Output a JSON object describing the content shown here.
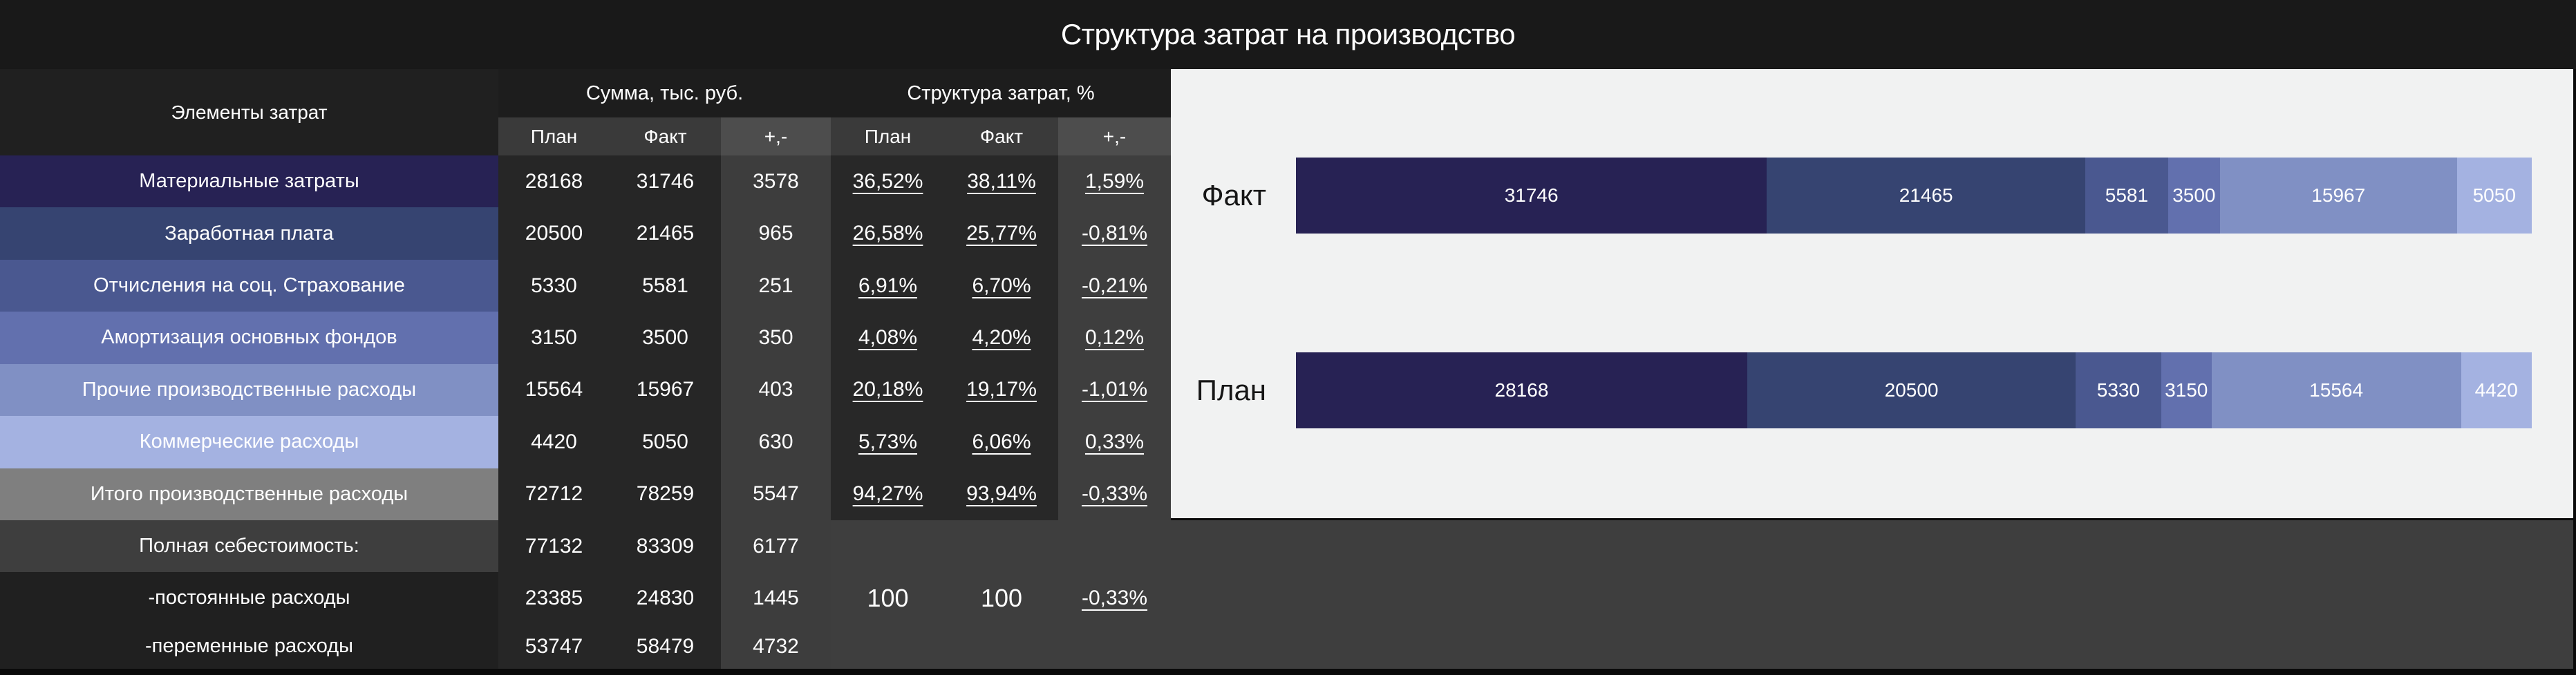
{
  "title": "Структура затрат на производство",
  "colors": {
    "panel_bg": "#f1f2f2",
    "band_bg": "#3e3e3e",
    "palette": [
      "#272254",
      "#364471",
      "#4a5890",
      "#6270ae",
      "#8090c4",
      "#a4b2e1"
    ],
    "total_row_color": "#7f7f7f"
  },
  "table": {
    "elements_header": "Элементы затрат",
    "sum_group_header": "Сумма, тыс. руб.",
    "pct_group_header": "Структура затрат, %",
    "sub_plan": "План",
    "sub_fact": "Факт",
    "sub_delta": "+,-",
    "rows": [
      {
        "label": "Материальные затраты",
        "color": "#272254",
        "plan": "28168",
        "fact": "31746",
        "delta": "3578",
        "plan_pct": "36,52%",
        "fact_pct": "38,11%",
        "delta_pct": "1,59%"
      },
      {
        "label": "Заработная плата",
        "color": "#364471",
        "plan": "20500",
        "fact": "21465",
        "delta": "965",
        "plan_pct": "26,58%",
        "fact_pct": "25,77%",
        "delta_pct": "-0,81%"
      },
      {
        "label": "Отчисления на соц. Страхование",
        "color": "#4a5890",
        "plan": "5330",
        "fact": "5581",
        "delta": "251",
        "plan_pct": "6,91%",
        "fact_pct": "6,70%",
        "delta_pct": "-0,21%"
      },
      {
        "label": "Амортизация основных фондов",
        "color": "#6270ae",
        "plan": "3150",
        "fact": "3500",
        "delta": "350",
        "plan_pct": "4,08%",
        "fact_pct": "4,20%",
        "delta_pct": "0,12%"
      },
      {
        "label": "Прочие производственные расходы",
        "color": "#8090c4",
        "plan": "15564",
        "fact": "15967",
        "delta": "403",
        "plan_pct": "20,18%",
        "fact_pct": "19,17%",
        "delta_pct": "-1,01%"
      },
      {
        "label": "Коммерческие расходы",
        "color": "#a4b2e1",
        "plan": "4420",
        "fact": "5050",
        "delta": "630",
        "plan_pct": "5,73%",
        "fact_pct": "6,06%",
        "delta_pct": "0,33%"
      },
      {
        "label": "Итого производственные расходы",
        "color": "#7f7f7f",
        "plan": "72712",
        "fact": "78259",
        "delta": "5547",
        "plan_pct": "94,27%",
        "fact_pct": "93,94%",
        "delta_pct": "-0,33%"
      }
    ],
    "bottom_rows": [
      {
        "label": "Полная себестоимость:",
        "plan": "77132",
        "fact": "83309",
        "delta": "6177"
      },
      {
        "label": "-постоянные расходы",
        "plan": "23385",
        "fact": "24830",
        "delta": "1445"
      },
      {
        "label": "-переменные расходы",
        "plan": "53747",
        "fact": "58479",
        "delta": "4732"
      }
    ],
    "bottom_plan_pct": "100",
    "bottom_fact_pct": "100",
    "bottom_delta_pct": "-0,33%"
  },
  "chart_data": {
    "type": "bar",
    "subtype": "horizontal_stacked_100pct",
    "categories": [
      "Факт",
      "План"
    ],
    "series": [
      {
        "name": "Материальные затраты",
        "color": "#272254",
        "values": [
          31746,
          28168
        ]
      },
      {
        "name": "Заработная плата",
        "color": "#364471",
        "values": [
          21465,
          20500
        ]
      },
      {
        "name": "Отчисления на соц. Страхование",
        "color": "#4a5890",
        "values": [
          5581,
          5330
        ]
      },
      {
        "name": "Амортизация основных фондов",
        "color": "#6270ae",
        "values": [
          3500,
          3150
        ]
      },
      {
        "name": "Прочие производственные расходы",
        "color": "#8090c4",
        "values": [
          15967,
          15564
        ]
      },
      {
        "name": "Коммерческие расходы",
        "color": "#a4b2e1",
        "values": [
          5050,
          4420
        ]
      }
    ],
    "totals": [
      83309,
      77132
    ],
    "title": "",
    "xlabel": "",
    "ylabel": "",
    "legend": "none",
    "grid": false,
    "background": "#f1f2f2"
  }
}
